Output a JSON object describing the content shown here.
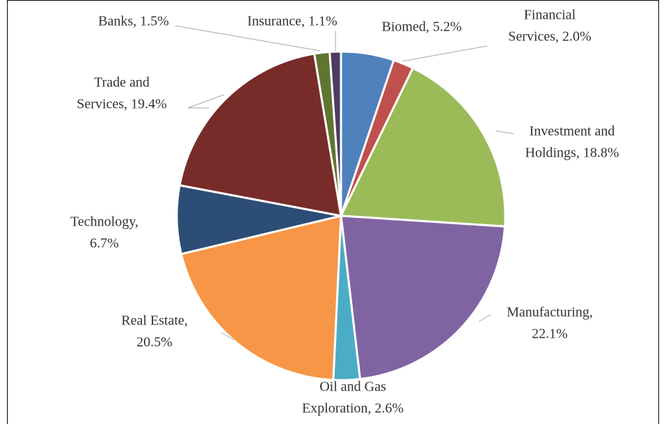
{
  "chart_data": {
    "type": "pie",
    "values": [
      5.2,
      2.0,
      18.8,
      22.1,
      2.6,
      20.5,
      6.7,
      19.4,
      1.5,
      1.1
    ],
    "value_labels": [
      [
        "Biomed, 5.2%"
      ],
      [
        "Financial",
        "Services, 2.0%"
      ],
      [
        "Investment and",
        "Holdings, 18.8%"
      ],
      [
        "Manufacturing,",
        "22.1%"
      ],
      [
        "Oil and Gas",
        "Exploration, 2.6%"
      ],
      [
        "Real Estate,",
        "20.5%"
      ],
      [
        "Technology,",
        "6.7%"
      ],
      [
        "Trade and",
        "Services, 19.4%"
      ],
      [
        "Banks, 1.5%"
      ],
      [
        "Insurance, 1.1%"
      ]
    ],
    "colors": [
      "#4f81bd",
      "#c0504d",
      "#9bbb59",
      "#8064a2",
      "#4bacc6",
      "#f79646",
      "#2c4d75",
      "#772c2a",
      "#5f7530",
      "#4d3b62"
    ]
  }
}
